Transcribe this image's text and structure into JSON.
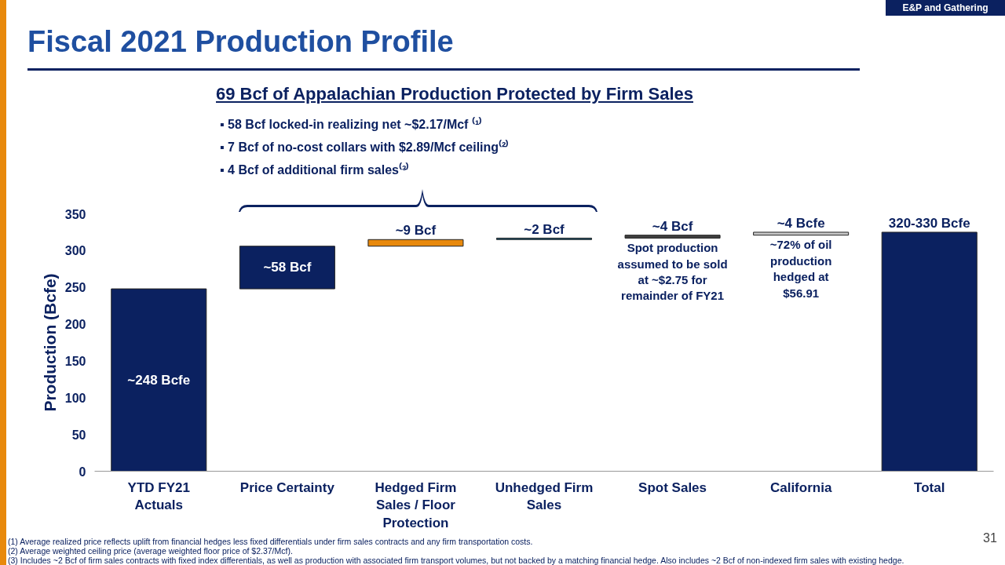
{
  "chart_data": {
    "type": "bar",
    "title": "Fiscal 2021 Production Profile",
    "subtitle": "69 Bcf of Appalachian Production Protected by Firm Sales",
    "ylabel": "Production (Bcfe)",
    "categories": [
      "YTD FY21 Actuals",
      "Price Certainty",
      "Hedged Firm Sales / Floor Protection",
      "Unhedged Firm Sales",
      "Spot Sales",
      "California",
      "Total"
    ],
    "values": [
      248,
      58,
      9,
      2,
      4,
      4,
      325
    ],
    "base": [
      0,
      248,
      306,
      315,
      317,
      321,
      0
    ],
    "colors": [
      "#0b2160",
      "#0b2160",
      "#e8890c",
      "#1f5c7a",
      "#404040",
      "#c8c8c8",
      "#0b2160"
    ],
    "value_labels": [
      "~248 Bcfe",
      "~58 Bcf",
      "~9 Bcf",
      "~2 Bcf",
      "~4 Bcf",
      "~4 Bcfe",
      "320-330 Bcfe"
    ],
    "ylim": [
      0,
      350
    ],
    "yticks": [
      0,
      50,
      100,
      150,
      200,
      250,
      300,
      350
    ],
    "grid": false,
    "annotations": [
      "E&P and Gathering",
      "▪ 58 Bcf locked-in realizing net ~$2.17/Mcf ⁽¹⁾",
      "▪ 7 Bcf of no-cost collars with $2.89/Mcf ceiling⁽²⁾",
      "▪ 4 Bcf of additional firm sales⁽³⁾",
      "Spot production assumed to be sold at ~$2.75 for remainder of FY21",
      "~72% of oil production hedged at $56.91",
      "(1)    Average realized price reflects uplift from financial hedges less fixed differentials under firm sales contracts and any firm transportation costs.",
      "(2)    Average weighted ceiling price (average weighted floor price of $2.37/Mcf).",
      "(3)    Includes ~2 Bcf of firm sales contracts with fixed index differentials, as well as production with associated firm transport volumes, but not backed by a matching financial hedge. Also includes ~2 Bcf of non-indexed firm sales with existing hedge.",
      "31"
    ]
  }
}
